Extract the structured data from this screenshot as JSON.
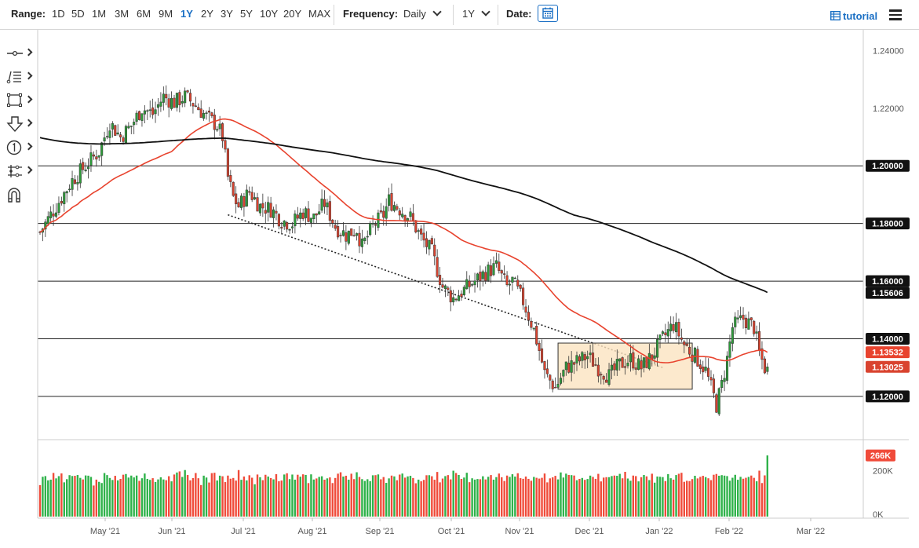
{
  "toolbar": {
    "range_label": "Range:",
    "ranges": [
      "1D",
      "5D",
      "1M",
      "3M",
      "6M",
      "9M",
      "1Y",
      "2Y",
      "3Y",
      "5Y",
      "10Y",
      "20Y",
      "MAX"
    ],
    "active_range": "1Y",
    "frequency_label": "Frequency:",
    "frequency_value": "Daily",
    "period_value": "1Y",
    "date_label": "Date:",
    "tutorial_label": "tutorial"
  },
  "side_tools": [
    "line-tool-icon",
    "fibonacci-tool-icon",
    "rectangle-tool-icon",
    "arrow-down-tool-icon",
    "annotation-number-icon",
    "pattern-tool-icon",
    "magnet-icon"
  ],
  "colors": {
    "up_candle": "#2e9b3a",
    "down_candle": "#d9432f",
    "ma_fast": "#e8432e",
    "ma_slow": "#111111",
    "accent": "#1a6fc4",
    "volume_up": "#2fb24a",
    "volume_down": "#f04b3a"
  },
  "chart_data": {
    "type": "candlestick",
    "frequency": "Daily",
    "y_ticks": [
      "1.24000",
      "1.22000",
      "1.20000",
      "1.18000",
      "1.16000",
      "1.15606",
      "1.14000",
      "1.13532",
      "1.13025",
      "1.12000"
    ],
    "x_ticks": [
      "May '21",
      "Jun '21",
      "Jul '21",
      "Aug '21",
      "Sep '21",
      "Oct '21",
      "Nov '21",
      "Dec '21",
      "Jan '22",
      "Feb '22",
      "Mar '22"
    ],
    "ylim": [
      1.105,
      1.245
    ],
    "horizontal_levels": [
      1.2,
      1.18,
      1.16,
      1.14,
      1.12
    ],
    "last_close": 1.13025,
    "ma_fast_last": 1.13532,
    "ma_slow_last": 1.15606,
    "close_path": [
      [
        0,
        1.177
      ],
      [
        6,
        1.186
      ],
      [
        12,
        1.195
      ],
      [
        18,
        1.201
      ],
      [
        22,
        1.205
      ],
      [
        26,
        1.215
      ],
      [
        30,
        1.21
      ],
      [
        34,
        1.214
      ],
      [
        38,
        1.22
      ],
      [
        42,
        1.218
      ],
      [
        46,
        1.224
      ],
      [
        50,
        1.222
      ],
      [
        54,
        1.224
      ],
      [
        58,
        1.221
      ],
      [
        62,
        1.217
      ],
      [
        66,
        1.214
      ],
      [
        68,
        1.21
      ],
      [
        70,
        1.196
      ],
      [
        72,
        1.189
      ],
      [
        74,
        1.186
      ],
      [
        78,
        1.191
      ],
      [
        82,
        1.186
      ],
      [
        86,
        1.185
      ],
      [
        90,
        1.181
      ],
      [
        94,
        1.18
      ],
      [
        98,
        1.184
      ],
      [
        102,
        1.182
      ],
      [
        106,
        1.187
      ],
      [
        110,
        1.179
      ],
      [
        114,
        1.176
      ],
      [
        118,
        1.178
      ],
      [
        120,
        1.172
      ],
      [
        124,
        1.179
      ],
      [
        128,
        1.183
      ],
      [
        130,
        1.188
      ],
      [
        134,
        1.185
      ],
      [
        138,
        1.182
      ],
      [
        142,
        1.175
      ],
      [
        146,
        1.17
      ],
      [
        150,
        1.158
      ],
      [
        154,
        1.154
      ],
      [
        158,
        1.157
      ],
      [
        162,
        1.16
      ],
      [
        166,
        1.163
      ],
      [
        170,
        1.165
      ],
      [
        174,
        1.158
      ],
      [
        176,
        1.16
      ],
      [
        180,
        1.153
      ],
      [
        184,
        1.143
      ],
      [
        186,
        1.136
      ],
      [
        188,
        1.128
      ],
      [
        192,
        1.123
      ],
      [
        196,
        1.13
      ],
      [
        200,
        1.132
      ],
      [
        204,
        1.134
      ],
      [
        208,
        1.13
      ],
      [
        212,
        1.127
      ],
      [
        216,
        1.131
      ],
      [
        220,
        1.133
      ],
      [
        224,
        1.13
      ],
      [
        228,
        1.134
      ],
      [
        232,
        1.14
      ],
      [
        236,
        1.145
      ],
      [
        240,
        1.138
      ],
      [
        244,
        1.134
      ],
      [
        248,
        1.129
      ],
      [
        252,
        1.117
      ],
      [
        254,
        1.124
      ],
      [
        256,
        1.133
      ],
      [
        258,
        1.144
      ],
      [
        262,
        1.147
      ],
      [
        266,
        1.144
      ],
      [
        268,
        1.135
      ],
      [
        270,
        1.13
      ]
    ],
    "volume": {
      "labels": [
        "266K",
        "200K",
        "0K"
      ],
      "last_volume": "266K",
      "ylim_k": [
        0,
        280
      ],
      "pattern": [
        150,
        170,
        165,
        160,
        175,
        180,
        172,
        168,
        185,
        160,
        170,
        178,
        182,
        165,
        190,
        175,
        172,
        168,
        180,
        176
      ]
    },
    "annotations": [
      "dotted descending trendline",
      "consolidation rectangle"
    ]
  }
}
